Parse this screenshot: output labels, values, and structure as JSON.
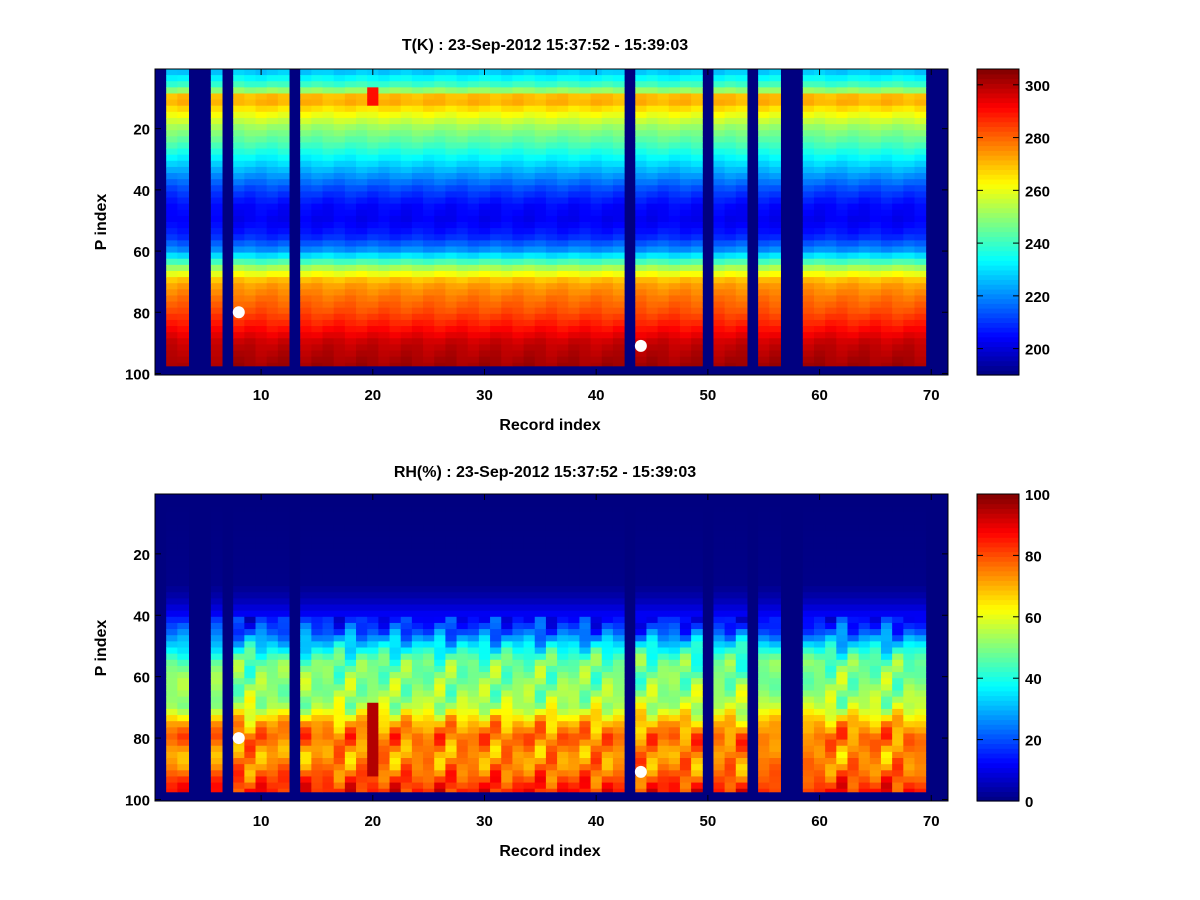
{
  "chart_data": [
    {
      "type": "heatmap",
      "title": "T(K) : 23-Sep-2012 15:37:52 - 15:39:03",
      "xlabel": "Record index",
      "ylabel": "P index",
      "xlim": [
        0.5,
        71.5
      ],
      "ylim": [
        0.5,
        100.5
      ],
      "y_reversed": true,
      "xticks": [
        "10",
        "20",
        "30",
        "40",
        "50",
        "60",
        "70"
      ],
      "yticks": [
        "20",
        "40",
        "60",
        "80",
        "100"
      ],
      "colorbar": {
        "clim": [
          190,
          306
        ],
        "ticks": [
          "200",
          "220",
          "240",
          "260",
          "280",
          "300"
        ]
      },
      "colormap": "jet",
      "missing_records": [
        1,
        4,
        5,
        7,
        13,
        43,
        50,
        54,
        57,
        58,
        70,
        71
      ],
      "valid_levels_max": 97,
      "profile_levels": [
        1,
        4,
        7,
        10,
        15,
        20,
        25,
        30,
        35,
        40,
        45,
        50,
        55,
        60,
        65,
        70,
        75,
        80,
        85,
        90,
        97
      ],
      "profile_values": [
        226,
        235,
        245,
        275,
        262,
        250,
        242,
        232,
        222,
        212,
        205,
        203,
        208,
        222,
        250,
        272,
        278,
        283,
        290,
        298,
        302
      ],
      "anomalies": [
        {
          "record": 20,
          "levels": [
            7,
            12
          ],
          "value": 290
        }
      ],
      "markers": [
        {
          "record": 8,
          "level": 80
        },
        {
          "record": 44,
          "level": 91
        }
      ]
    },
    {
      "type": "heatmap",
      "title": "RH(%) : 23-Sep-2012 15:37:52 - 15:39:03",
      "xlabel": "Record index",
      "ylabel": "P index",
      "xlim": [
        0.5,
        71.5
      ],
      "ylim": [
        0.5,
        100.5
      ],
      "y_reversed": true,
      "xticks": [
        "10",
        "20",
        "30",
        "40",
        "50",
        "60",
        "70"
      ],
      "yticks": [
        "20",
        "40",
        "60",
        "80",
        "100"
      ],
      "colorbar": {
        "clim": [
          0,
          100
        ],
        "ticks": [
          "0",
          "20",
          "40",
          "60",
          "80",
          "100"
        ]
      },
      "colormap": "jet",
      "missing_records": [
        1,
        4,
        5,
        7,
        13,
        43,
        50,
        54,
        57,
        58,
        70,
        71
      ],
      "valid_levels_max": 97,
      "profile_levels": [
        1,
        30,
        35,
        40,
        45,
        50,
        55,
        60,
        65,
        70,
        75,
        80,
        85,
        90,
        97
      ],
      "profile_values": [
        0,
        1,
        5,
        12,
        20,
        35,
        48,
        50,
        52,
        55,
        70,
        78,
        72,
        75,
        85
      ],
      "anomalies": [
        {
          "record": 20,
          "levels": [
            68,
            92
          ],
          "value": 95
        }
      ],
      "markers": [
        {
          "record": 8,
          "level": 80
        },
        {
          "record": 44,
          "level": 91
        }
      ]
    }
  ]
}
